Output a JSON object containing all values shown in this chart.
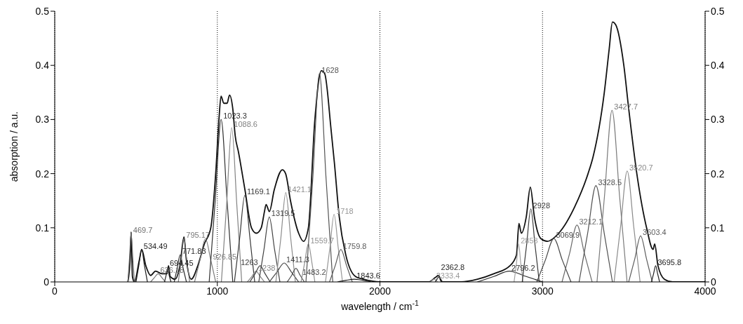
{
  "chart_data": {
    "type": "line",
    "xlabel": "wavelength / cm$^{-1}$",
    "ylabel": "absorption / a.u.",
    "xlim": [
      0,
      4000
    ],
    "xticks": [
      0,
      1000,
      2000,
      3000,
      4000
    ],
    "ylim": [
      0,
      0.5
    ],
    "yticks": [
      0,
      0.1,
      0.2,
      0.3,
      0.4,
      0.5
    ],
    "y2lim": [
      0,
      0.5
    ],
    "y2ticks": [
      0,
      0.1,
      0.2,
      0.3,
      0.4,
      0.5
    ],
    "grid": true,
    "legend": false,
    "marker": "none",
    "line_style": "solid",
    "series": [
      {
        "color": "#111111",
        "x": [
          450,
          465,
          470,
          478,
          490,
          520,
          535,
          560,
          590,
          620,
          660,
          690,
          700,
          710,
          740,
          770,
          795,
          810,
          840,
          880,
          920,
          960,
          990,
          1010,
          1023,
          1040,
          1060,
          1075,
          1095,
          1110,
          1130,
          1170,
          1210,
          1240,
          1270,
          1290,
          1300,
          1320,
          1350,
          1400,
          1420,
          1450,
          1500,
          1530,
          1560,
          1600,
          1640,
          1660,
          1700,
          1720,
          1750,
          1790,
          1850,
          1900,
          2000,
          2300,
          2340,
          2360,
          2380,
          2400,
          2500,
          2600,
          2700,
          2800,
          2840,
          2855,
          2870,
          2900,
          2925,
          2950,
          2990,
          3030,
          3100,
          3200,
          3280,
          3310,
          3380,
          3410,
          3430,
          3450,
          3500,
          3530,
          3580,
          3640,
          3680,
          3690,
          3710,
          3750,
          3800,
          4000
        ],
        "values": [
          0,
          0.05,
          0.092,
          0.01,
          0,
          0.04,
          0.06,
          0.03,
          0.012,
          0.02,
          0.015,
          0.015,
          0.03,
          0.01,
          0.005,
          0.03,
          0.083,
          0.04,
          0.005,
          0.03,
          0.07,
          0.1,
          0.2,
          0.3,
          0.343,
          0.33,
          0.33,
          0.345,
          0.32,
          0.27,
          0.24,
          0.17,
          0.1,
          0.09,
          0.1,
          0.13,
          0.143,
          0.13,
          0.17,
          0.207,
          0.2,
          0.15,
          0.09,
          0.075,
          0.1,
          0.3,
          0.39,
          0.385,
          0.28,
          0.22,
          0.12,
          0.05,
          0.01,
          0.005,
          0,
          0,
          0.008,
          0.012,
          0,
          0,
          0,
          0.005,
          0.015,
          0.03,
          0.05,
          0.108,
          0.09,
          0.12,
          0.175,
          0.12,
          0.08,
          0.075,
          0.09,
          0.14,
          0.2,
          0.23,
          0.35,
          0.43,
          0.48,
          0.475,
          0.4,
          0.32,
          0.2,
          0.1,
          0.06,
          0.07,
          0.03,
          0.005,
          0,
          0
        ]
      },
      {
        "name": "469.7",
        "color": "#6e6e6e",
        "x": [
          450,
          460,
          469.7,
          480,
          490
        ],
        "values": [
          0,
          0.045,
          0.09,
          0.045,
          0
        ]
      },
      {
        "name": "534.49",
        "color": "#1e1e1e",
        "x": [
          500,
          517,
          534.49,
          552,
          570
        ],
        "values": [
          0,
          0.03,
          0.06,
          0.03,
          0
        ]
      },
      {
        "name": "636.18",
        "color": "#737373",
        "x": [
          590,
          613,
          636.18,
          659,
          680
        ],
        "values": [
          0,
          0.008,
          0.015,
          0.008,
          0
        ]
      },
      {
        "name": "694.45",
        "color": "#242424",
        "x": [
          675,
          685,
          694.45,
          704,
          715
        ],
        "values": [
          0,
          0.012,
          0.025,
          0.012,
          0
        ]
      },
      {
        "name": "771.83",
        "color": "#2a2a2a",
        "x": [
          735,
          753,
          771.83,
          790,
          810
        ],
        "values": [
          0,
          0.025,
          0.05,
          0.025,
          0
        ]
      },
      {
        "name": "795.17",
        "color": "#787878",
        "x": [
          760,
          778,
          795.17,
          812,
          830
        ],
        "values": [
          0,
          0.04,
          0.08,
          0.04,
          0
        ]
      },
      {
        "name": "926.85",
        "color": "#7d7d7d",
        "x": [
          860,
          893,
          926.85,
          960,
          990
        ],
        "values": [
          0,
          0.04,
          0.08,
          0.04,
          0
        ]
      },
      {
        "name": "1023.3",
        "color": "#303030",
        "x": [
          950,
          987,
          1023.3,
          1060,
          1095
        ],
        "values": [
          0,
          0.15,
          0.3,
          0.15,
          0
        ]
      },
      {
        "name": "1088.6",
        "color": "#828282",
        "x": [
          1025,
          1057,
          1088.6,
          1120,
          1150
        ],
        "values": [
          0,
          0.142,
          0.285,
          0.142,
          0
        ]
      },
      {
        "name": "1169.1",
        "color": "#363636",
        "x": [
          1105,
          1137,
          1169.1,
          1201,
          1230
        ],
        "values": [
          0,
          0.08,
          0.16,
          0.08,
          0
        ]
      },
      {
        "name": "1238",
        "color": "#878787",
        "x": [
          1185,
          1212,
          1238,
          1264,
          1290
        ],
        "values": [
          0,
          0.01,
          0.02,
          0.01,
          0
        ]
      },
      {
        "name": "1263",
        "color": "#3c3c3c",
        "x": [
          1200,
          1232,
          1263,
          1294,
          1325
        ],
        "values": [
          0,
          0.015,
          0.03,
          0.015,
          0
        ]
      },
      {
        "name": "1319.5",
        "color": "#424242",
        "x": [
          1255,
          1287,
          1319.5,
          1352,
          1385
        ],
        "values": [
          0,
          0.06,
          0.12,
          0.06,
          0
        ]
      },
      {
        "name": "1411.3",
        "color": "#484848",
        "x": [
          1320,
          1366,
          1411.3,
          1456,
          1500
        ],
        "values": [
          0,
          0.018,
          0.035,
          0.018,
          0
        ]
      },
      {
        "name": "1421.1",
        "color": "#8c8c8c",
        "x": [
          1360,
          1391,
          1421.1,
          1451,
          1480
        ],
        "values": [
          0,
          0.082,
          0.165,
          0.082,
          0
        ]
      },
      {
        "name": "1483.2",
        "color": "#4e4e4e",
        "x": [
          1430,
          1457,
          1483.2,
          1510,
          1535
        ],
        "values": [
          0,
          0.012,
          0.025,
          0.012,
          0
        ]
      },
      {
        "name": "1559.7",
        "color": "#919191",
        "x": [
          1515,
          1537,
          1559.7,
          1582,
          1600
        ],
        "values": [
          0,
          0.035,
          0.07,
          0.035,
          0
        ]
      },
      {
        "name": "1628",
        "color": "#545454",
        "x": [
          1545,
          1587,
          1628,
          1669,
          1710
        ],
        "values": [
          0,
          0.19,
          0.385,
          0.19,
          0
        ]
      },
      {
        "name": "1718",
        "color": "#969696",
        "x": [
          1665,
          1692,
          1718,
          1744,
          1770
        ],
        "values": [
          0,
          0.062,
          0.125,
          0.062,
          0
        ]
      },
      {
        "name": "1759.8",
        "color": "#5a5a5a",
        "x": [
          1690,
          1725,
          1759.8,
          1795,
          1830
        ],
        "values": [
          0,
          0.03,
          0.06,
          0.03,
          0
        ]
      },
      {
        "name": "1843.6",
        "color": "#1b1b1b",
        "x": [
          1740,
          1792,
          1843.6,
          1895,
          1945
        ],
        "values": [
          0,
          0.003,
          0.005,
          0.003,
          0
        ]
      },
      {
        "name": "2333.4",
        "color": "#9b9b9b",
        "x": [
          2310,
          2322,
          2333.4,
          2345,
          2355
        ],
        "values": [
          0,
          0.003,
          0.005,
          0.003,
          0
        ]
      },
      {
        "name": "2362.8",
        "color": "#272727",
        "x": [
          2340,
          2351,
          2362.8,
          2374,
          2385
        ],
        "values": [
          0,
          0.005,
          0.01,
          0.005,
          0
        ]
      },
      {
        "name": "2796.2",
        "color": "#2d2d2d",
        "x": [
          2600,
          2700,
          2796.2,
          2900,
          3000
        ],
        "values": [
          0,
          0.01,
          0.02,
          0.01,
          0
        ]
      },
      {
        "name": "2853",
        "color": "#a0a0a0",
        "x": [
          2825,
          2840,
          2853,
          2866,
          2880
        ],
        "values": [
          0,
          0.035,
          0.07,
          0.035,
          0
        ]
      },
      {
        "name": "2928",
        "color": "#393939",
        "x": [
          2875,
          2902,
          2928,
          2954,
          2980
        ],
        "values": [
          0,
          0.068,
          0.135,
          0.068,
          0
        ]
      },
      {
        "name": "3069.9",
        "color": "#454545",
        "x": [
          2965,
          3017,
          3069.9,
          3122,
          3175
        ],
        "values": [
          0,
          0.04,
          0.08,
          0.04,
          0
        ]
      },
      {
        "name": "3212.1",
        "color": "#6a6a6a",
        "x": [
          3120,
          3166,
          3212.1,
          3258,
          3305
        ],
        "values": [
          0,
          0.052,
          0.105,
          0.052,
          0
        ]
      },
      {
        "name": "3328.5",
        "color": "#515151",
        "x": [
          3225,
          3277,
          3328.5,
          3380,
          3430
        ],
        "values": [
          0,
          0.089,
          0.178,
          0.089,
          0
        ]
      },
      {
        "name": "3427.7",
        "color": "#7a7a7a",
        "x": [
          3335,
          3381,
          3427.7,
          3474,
          3520
        ],
        "values": [
          0,
          0.158,
          0.317,
          0.158,
          0
        ]
      },
      {
        "name": "3520.7",
        "color": "#8a8a8a",
        "x": [
          3440,
          3480,
          3520.7,
          3561,
          3600
        ],
        "values": [
          0,
          0.102,
          0.205,
          0.102,
          0
        ]
      },
      {
        "name": "3603.4",
        "color": "#5d5d5d",
        "x": [
          3530,
          3567,
          3603.4,
          3640,
          3675
        ],
        "values": [
          0,
          0.042,
          0.085,
          0.042,
          0
        ]
      },
      {
        "name": "3695.8",
        "color": "#212121",
        "x": [
          3670,
          3683,
          3695.8,
          3708,
          3720
        ],
        "values": [
          0,
          0.015,
          0.03,
          0.015,
          0
        ]
      }
    ]
  }
}
